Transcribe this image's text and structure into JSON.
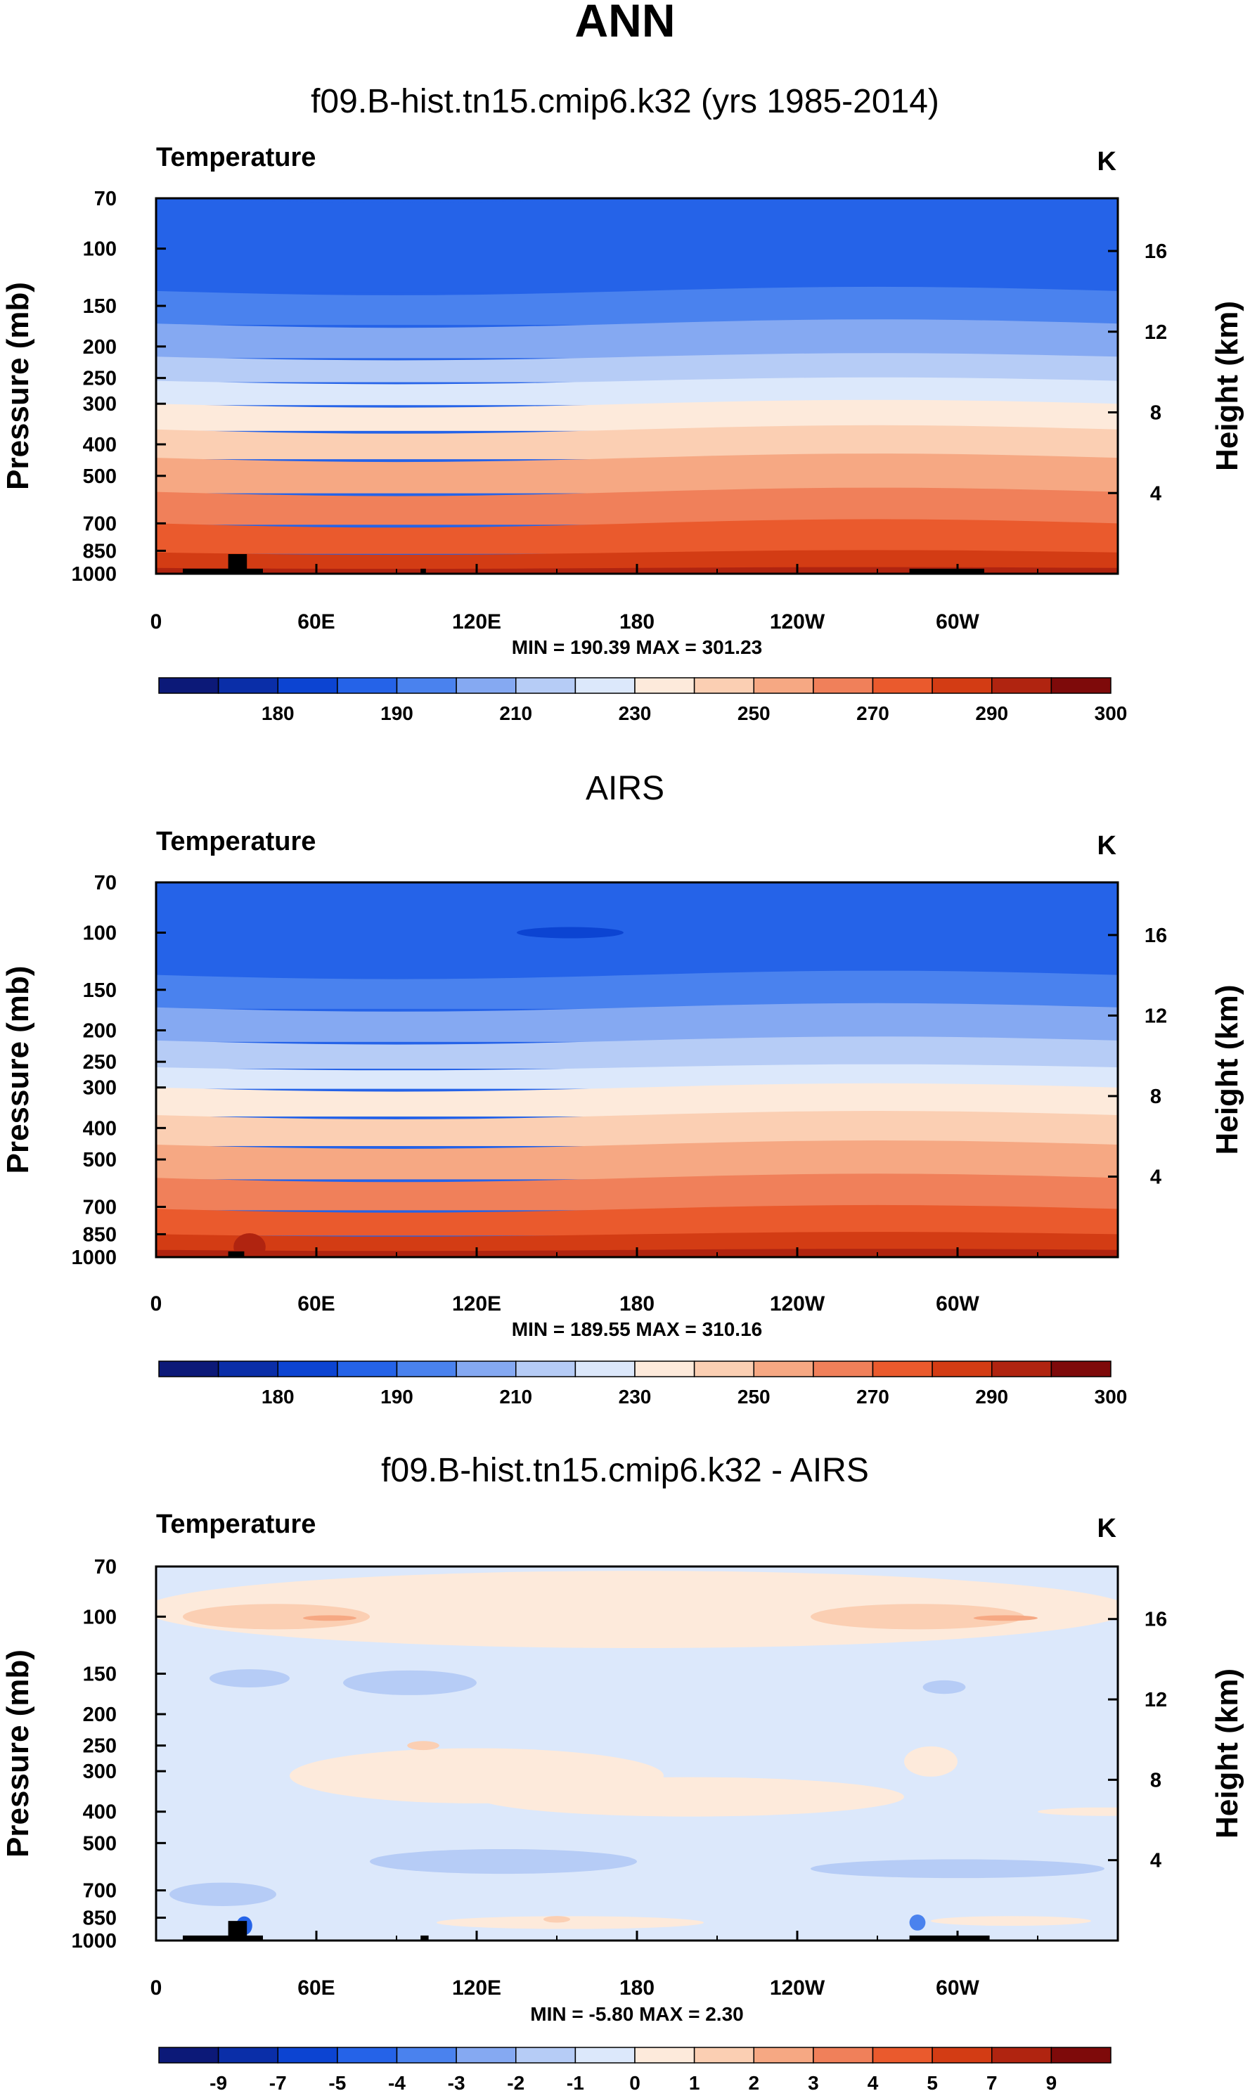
{
  "figure_title": "ANN",
  "colors": {
    "frame": "#000000",
    "land_mask": "#000000"
  },
  "chart_data": [
    {
      "type": "heatmap",
      "title": "f09.B-hist.tn15.cmip6.k32 (yrs 1985-2014)",
      "variable_label": "Temperature",
      "units": "K",
      "ylabel": "Pressure (mb)",
      "ylabel_right": "Height (km)",
      "x_ticks": [
        "0",
        "60E",
        "120E",
        "180",
        "120W",
        "60W"
      ],
      "pressure_ticks": [
        "70",
        "100",
        "150",
        "200",
        "250",
        "300",
        "400",
        "500",
        "700",
        "850",
        "1000"
      ],
      "height_ticks": [
        "4",
        "8",
        "12",
        "16"
      ],
      "stats_text": "MIN = 190.39  MAX = 301.23",
      "min": 190.39,
      "max": 301.23,
      "colorbar_labels": [
        "180",
        "190",
        "210",
        "230",
        "250",
        "270",
        "290",
        "300"
      ],
      "colorbar_colors": [
        "#0c1978",
        "#0a2ea8",
        "#0c44d2",
        "#2563e8",
        "#4a82ee",
        "#85a9f2",
        "#b6ccf6",
        "#dce8fb",
        "#fdeadb",
        "#fbcfb3",
        "#f6a883",
        "#f0805a",
        "#ea5a2d",
        "#d33c14",
        "#b02410",
        "#7e0a0a"
      ],
      "bands": [
        {
          "p_top": 70,
          "p_bottom": 135,
          "color": "#2563e8"
        },
        {
          "p_top": 135,
          "p_bottom": 170,
          "color": "#4a82ee"
        },
        {
          "p_top": 170,
          "p_bottom": 215,
          "color": "#85a9f2"
        },
        {
          "p_top": 215,
          "p_bottom": 255,
          "color": "#b6ccf6"
        },
        {
          "p_top": 255,
          "p_bottom": 300,
          "color": "#dce8fb"
        },
        {
          "p_top": 300,
          "p_bottom": 360,
          "color": "#fdeadb"
        },
        {
          "p_top": 360,
          "p_bottom": 440,
          "color": "#fbcfb3"
        },
        {
          "p_top": 440,
          "p_bottom": 560,
          "color": "#f6a883"
        },
        {
          "p_top": 560,
          "p_bottom": 700,
          "color": "#f0805a"
        },
        {
          "p_top": 700,
          "p_bottom": 860,
          "color": "#ea5a2d"
        },
        {
          "p_top": 860,
          "p_bottom": 960,
          "color": "#d33c14"
        },
        {
          "p_top": 960,
          "p_bottom": 1000,
          "color": "#b02410"
        }
      ],
      "blobs": [],
      "land": [
        {
          "lon0": 10,
          "lon1": 40,
          "p_top": 965
        },
        {
          "lon0": 27,
          "lon1": 34,
          "p_top": 870
        },
        {
          "lon0": 99,
          "lon1": 101,
          "p_top": 965
        },
        {
          "lon0": 282,
          "lon1": 310,
          "p_top": 965
        }
      ]
    },
    {
      "type": "heatmap",
      "title": "AIRS",
      "variable_label": "Temperature",
      "units": "K",
      "ylabel": "Pressure (mb)",
      "ylabel_right": "Height (km)",
      "x_ticks": [
        "0",
        "60E",
        "120E",
        "180",
        "120W",
        "60W"
      ],
      "pressure_ticks": [
        "70",
        "100",
        "150",
        "200",
        "250",
        "300",
        "400",
        "500",
        "700",
        "850",
        "1000"
      ],
      "height_ticks": [
        "4",
        "8",
        "12",
        "16"
      ],
      "stats_text": "MIN = 189.55  MAX = 310.16",
      "min": 189.55,
      "max": 310.16,
      "colorbar_labels": [
        "180",
        "190",
        "210",
        "230",
        "250",
        "270",
        "290",
        "300"
      ],
      "colorbar_colors": [
        "#0c1978",
        "#0a2ea8",
        "#0c44d2",
        "#2563e8",
        "#4a82ee",
        "#85a9f2",
        "#b6ccf6",
        "#dce8fb",
        "#fdeadb",
        "#fbcfb3",
        "#f6a883",
        "#f0805a",
        "#ea5a2d",
        "#d33c14",
        "#b02410",
        "#7e0a0a"
      ],
      "bands": [
        {
          "p_top": 70,
          "p_bottom": 135,
          "color": "#2563e8"
        },
        {
          "p_top": 135,
          "p_bottom": 170,
          "color": "#4a82ee"
        },
        {
          "p_top": 170,
          "p_bottom": 215,
          "color": "#85a9f2"
        },
        {
          "p_top": 215,
          "p_bottom": 260,
          "color": "#b6ccf6"
        },
        {
          "p_top": 260,
          "p_bottom": 300,
          "color": "#dce8fb"
        },
        {
          "p_top": 300,
          "p_bottom": 365,
          "color": "#fdeadb"
        },
        {
          "p_top": 365,
          "p_bottom": 450,
          "color": "#fbcfb3"
        },
        {
          "p_top": 450,
          "p_bottom": 570,
          "color": "#f6a883"
        },
        {
          "p_top": 570,
          "p_bottom": 710,
          "color": "#f0805a"
        },
        {
          "p_top": 710,
          "p_bottom": 850,
          "color": "#ea5a2d"
        },
        {
          "p_top": 850,
          "p_bottom": 950,
          "color": "#d33c14"
        },
        {
          "p_top": 950,
          "p_bottom": 1000,
          "color": "#b02410"
        }
      ],
      "blobs": [
        {
          "lon": 155,
          "p": 100,
          "rlon": 20,
          "rp": 4,
          "color": "#0c44d2"
        },
        {
          "lon": 35,
          "p": 930,
          "rlon": 6,
          "rp": 90,
          "color": "#b02410"
        }
      ],
      "land": [
        {
          "lon0": 27,
          "lon1": 33,
          "p_top": 960
        }
      ]
    },
    {
      "type": "heatmap",
      "title": "f09.B-hist.tn15.cmip6.k32 - AIRS",
      "variable_label": "Temperature",
      "units": "K",
      "ylabel": "Pressure (mb)",
      "ylabel_right": "Height (km)",
      "x_ticks": [
        "0",
        "60E",
        "120E",
        "180",
        "120W",
        "60W"
      ],
      "pressure_ticks": [
        "70",
        "100",
        "150",
        "200",
        "250",
        "300",
        "400",
        "500",
        "700",
        "850",
        "1000"
      ],
      "height_ticks": [
        "4",
        "8",
        "12",
        "16"
      ],
      "stats_text": "MIN = -5.80  MAX = 2.30",
      "min": -5.8,
      "max": 2.3,
      "colorbar_labels": [
        "-9",
        "-7",
        "-5",
        "-4",
        "-3",
        "-2",
        "-1",
        "0",
        "1",
        "2",
        "3",
        "4",
        "5",
        "7",
        "9"
      ],
      "colorbar_colors": [
        "#0c1978",
        "#0a2ea8",
        "#0c44d2",
        "#2563e8",
        "#4a82ee",
        "#85a9f2",
        "#b6ccf6",
        "#dce8fb",
        "#fdeadb",
        "#fbcfb3",
        "#f6a883",
        "#f0805a",
        "#ea5a2d",
        "#d33c14",
        "#b02410",
        "#7e0a0a"
      ],
      "base_color": "#dce8fb",
      "bands": [],
      "blobs": [
        {
          "lon": 180,
          "p": 95,
          "rlon": 185,
          "rp": 28,
          "color": "#fdeadb"
        },
        {
          "lon": 45,
          "p": 100,
          "rlon": 35,
          "rp": 9,
          "color": "#fbcfb3"
        },
        {
          "lon": 285,
          "p": 100,
          "rlon": 40,
          "rp": 9,
          "color": "#fbcfb3"
        },
        {
          "lon": 65,
          "p": 101,
          "rlon": 10,
          "rp": 2,
          "color": "#f6a883"
        },
        {
          "lon": 318,
          "p": 101,
          "rlon": 12,
          "rp": 2,
          "color": "#f6a883"
        },
        {
          "lon": 35,
          "p": 155,
          "rlon": 15,
          "rp": 10,
          "color": "#b6ccf6"
        },
        {
          "lon": 95,
          "p": 160,
          "rlon": 25,
          "rp": 14,
          "color": "#b6ccf6"
        },
        {
          "lon": 295,
          "p": 165,
          "rlon": 8,
          "rp": 8,
          "color": "#b6ccf6"
        },
        {
          "lon": 120,
          "p": 310,
          "rlon": 70,
          "rp": 60,
          "color": "#fdeadb"
        },
        {
          "lon": 200,
          "p": 360,
          "rlon": 80,
          "rp": 50,
          "color": "#fdeadb"
        },
        {
          "lon": 290,
          "p": 280,
          "rlon": 10,
          "rp": 30,
          "color": "#fdeadb"
        },
        {
          "lon": 355,
          "p": 400,
          "rlon": 25,
          "rp": 12,
          "color": "#fdeadb"
        },
        {
          "lon": 100,
          "p": 250,
          "rlon": 6,
          "rp": 8,
          "color": "#fbcfb3"
        },
        {
          "lon": 130,
          "p": 570,
          "rlon": 50,
          "rp": 50,
          "color": "#b6ccf6"
        },
        {
          "lon": 300,
          "p": 600,
          "rlon": 55,
          "rp": 40,
          "color": "#b6ccf6"
        },
        {
          "lon": 25,
          "p": 720,
          "rlon": 20,
          "rp": 60,
          "color": "#b6ccf6"
        },
        {
          "lon": 33,
          "p": 900,
          "rlon": 3,
          "rp": 60,
          "color": "#2563e8"
        },
        {
          "lon": 285,
          "p": 880,
          "rlon": 3,
          "rp": 50,
          "color": "#4a82ee"
        },
        {
          "lon": 155,
          "p": 880,
          "rlon": 50,
          "rp": 40,
          "color": "#fdeadb"
        },
        {
          "lon": 150,
          "p": 860,
          "rlon": 5,
          "rp": 20,
          "color": "#fbcfb3"
        },
        {
          "lon": 320,
          "p": 870,
          "rlon": 30,
          "rp": 30,
          "color": "#fdeadb"
        }
      ],
      "land": [
        {
          "lon0": 10,
          "lon1": 40,
          "p_top": 965
        },
        {
          "lon0": 27,
          "lon1": 34,
          "p_top": 870
        },
        {
          "lon0": 99,
          "lon1": 102,
          "p_top": 965
        },
        {
          "lon0": 282,
          "lon1": 312,
          "p_top": 965
        }
      ]
    }
  ]
}
